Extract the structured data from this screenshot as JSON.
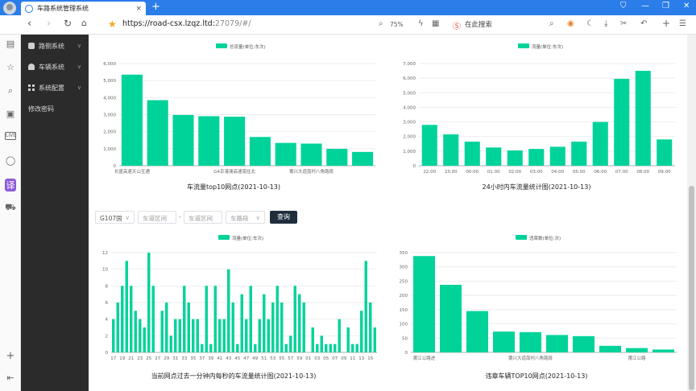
{
  "browser": {
    "tab_title": "车路系统管理系统",
    "tab_close": "×",
    "new_tab": "+",
    "url_main": "https://road-csx.lzqz.ltd:",
    "url_port": "27079/#/",
    "zoom": "75%",
    "search_placeholder": "在此搜索",
    "window_controls": [
      "⛉",
      "—",
      "❐",
      "✕"
    ]
  },
  "sidebar": {
    "items": [
      {
        "label": "路侧系统",
        "icon": "car-icon",
        "expandable": true
      },
      {
        "label": "车辆系统",
        "icon": "car-icon",
        "expandable": true
      },
      {
        "label": "系统配置",
        "icon": "grid-icon",
        "expandable": true
      },
      {
        "label": "修改密码",
        "icon": "",
        "expandable": false
      }
    ]
  },
  "filters": {
    "road_select": "G107国",
    "section_start": "车道区间",
    "dash": "-",
    "section_end": "车道区间",
    "direction_select": "车路段",
    "query_button": "查询"
  },
  "colors": {
    "bar": "#00d39a",
    "sidebar_bg": "#2b2b2b",
    "tabbar": "#2b7de9"
  },
  "chart_data": [
    {
      "type": "bar",
      "title": "车流量top10网点(2021-10-13)",
      "legend": "总流量(单位:车次)",
      "categories": [
        "长盛高速天山互通",
        "",
        "",
        "",
        "G4京港澳高速南往北",
        "",
        "",
        "莆兴大道南村八角路段",
        "",
        ""
      ],
      "tick_labels": [
        "长盛高速天山互通",
        "G4京港澳高速南往北",
        "莆兴大道南村八角路段"
      ],
      "values": [
        5350,
        3850,
        2980,
        2910,
        2880,
        1690,
        1340,
        1300,
        990,
        810
      ],
      "yticks": [
        "0",
        "1,000",
        "2,000",
        "3,000",
        "4,000",
        "5,000",
        "6,000"
      ],
      "ylim": [
        0,
        6000
      ]
    },
    {
      "type": "bar",
      "title": "24小时内车流量统计图(2021-10-13)",
      "legend": "流量(单位:车次)",
      "categories": [
        "22:00",
        "23:00",
        "00:00",
        "01:00",
        "02:00",
        "03:00",
        "04:00",
        "05:00",
        "06:00",
        "07:00",
        "08:00",
        "09:00"
      ],
      "values": [
        2800,
        2150,
        1650,
        1250,
        1050,
        1150,
        1300,
        1650,
        3000,
        5950,
        6500,
        1800
      ],
      "yticks": [
        "0",
        "1,000",
        "2,000",
        "3,000",
        "4,000",
        "5,000",
        "6,000",
        "7,000"
      ],
      "ylim": [
        0,
        7000
      ]
    },
    {
      "type": "bar",
      "title": "当前网点过去一分钟内每秒的车流量统计图(2021-10-13)",
      "legend": "流量(单位:车次)",
      "tick_labels": [
        "17",
        "19",
        "21",
        "23",
        "25",
        "27",
        "29",
        "31",
        "33",
        "35",
        "37",
        "39",
        "41",
        "43",
        "45",
        "47",
        "49",
        "51",
        "53",
        "55",
        "57",
        "59",
        "01",
        "03",
        "05",
        "07",
        "09",
        "11",
        "13",
        "15"
      ],
      "values": [
        4,
        6,
        8,
        11,
        8,
        5,
        4,
        3,
        12,
        8,
        0,
        5,
        6,
        2,
        4,
        4,
        8,
        6,
        4,
        4,
        1,
        8,
        1,
        8,
        4,
        4,
        10,
        6,
        1,
        7,
        4,
        8,
        1,
        4,
        7,
        4,
        6,
        8,
        6,
        1,
        2,
        8,
        7,
        6,
        0,
        3,
        1,
        2,
        1,
        1,
        1,
        4,
        0,
        3,
        1,
        1,
        5,
        11,
        6,
        3
      ],
      "yticks": [
        "0",
        "2",
        "4",
        "6",
        "8",
        "10",
        "12"
      ],
      "ylim": [
        0,
        12
      ]
    },
    {
      "type": "bar",
      "title": "违章车辆TOP10网点(2021-10-13)",
      "legend": "违章数(单位:次)",
      "tick_labels": [
        "莆江公路进",
        "莆兴大道南村八角路段",
        "莆江公路"
      ],
      "values": [
        338,
        237,
        145,
        73,
        71,
        61,
        57,
        23,
        15,
        10
      ],
      "yticks": [
        "0",
        "50",
        "100",
        "150",
        "200",
        "250",
        "300",
        "350"
      ],
      "ylim": [
        0,
        350
      ]
    }
  ]
}
